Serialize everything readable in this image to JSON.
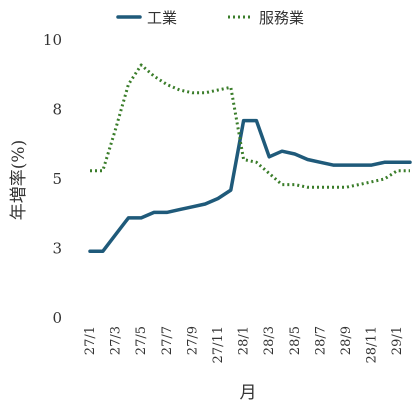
{
  "chart_data": {
    "type": "line",
    "ylabel": "年増率(%)",
    "xlabel": "月",
    "ylim": [
      0,
      10
    ],
    "y_ticks": [
      {
        "value": 0,
        "label": "0"
      },
      {
        "value": 2.5,
        "label": "3"
      },
      {
        "value": 5,
        "label": "5"
      },
      {
        "value": 7.5,
        "label": "8"
      },
      {
        "value": 10,
        "label": "10"
      }
    ],
    "x_tick_labels": [
      "27/1",
      "27/3",
      "27/5",
      "27/7",
      "27/9",
      "27/11",
      "28/1",
      "28/3",
      "28/5",
      "28/7",
      "28/9",
      "28/11",
      "29/1"
    ],
    "x_tick_index": [
      0,
      2,
      4,
      6,
      8,
      10,
      12,
      14,
      16,
      18,
      20,
      22,
      24
    ],
    "legend": "top",
    "grid": false,
    "series": [
      {
        "name": "工業",
        "color": "#1f5a7a",
        "style": "solid",
        "values": [
          2.4,
          2.4,
          3.0,
          3.6,
          3.6,
          3.8,
          3.8,
          3.9,
          4.0,
          4.1,
          4.3,
          4.6,
          7.1,
          7.1,
          5.8,
          6.0,
          5.9,
          5.7,
          5.6,
          5.5,
          5.5,
          5.5,
          5.5,
          5.6,
          5.6,
          5.6
        ]
      },
      {
        "name": "服務業",
        "color": "#3a7d2a",
        "style": "dotted",
        "values": [
          5.3,
          5.3,
          6.8,
          8.4,
          9.1,
          8.7,
          8.4,
          8.2,
          8.1,
          8.1,
          8.2,
          8.3,
          5.7,
          5.6,
          5.2,
          4.8,
          4.8,
          4.7,
          4.7,
          4.7,
          4.7,
          4.8,
          4.9,
          5.0,
          5.3,
          5.3
        ]
      }
    ]
  }
}
